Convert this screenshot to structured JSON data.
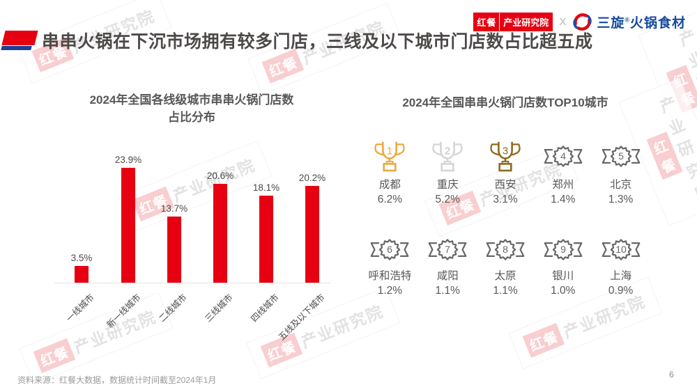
{
  "header": {
    "title": "串串火锅在下沉市场拥有较多门店，三线及以下城市门店数占比超五成",
    "logos": {
      "hongcan": "红餐",
      "institute": "产业研究院",
      "separator": "X",
      "partner_name": "三旋",
      "partner_reg": "®",
      "partner_suffix": "火锅食材"
    }
  },
  "watermark": {
    "brand": "红餐",
    "institute": "产业研究院"
  },
  "chart_data": {
    "type": "bar",
    "title": "2024年全国各线级城市串串火锅门店数占比分布",
    "title_line1": "2024年全国各线级城市串串火锅门店数",
    "title_line2": "占比分布",
    "categories": [
      "一线城市",
      "新一线城市",
      "二线城市",
      "三线城市",
      "四线城市",
      "五线及以下城市"
    ],
    "values": [
      3.5,
      23.9,
      13.7,
      20.6,
      18.1,
      20.2
    ],
    "labels": [
      "3.5%",
      "23.9%",
      "13.7%",
      "20.6%",
      "18.1%",
      "20.2%"
    ],
    "unit": "%",
    "bar_color": "#e60012",
    "ylim": [
      0,
      26
    ],
    "grid": false,
    "legend": "none"
  },
  "top10": {
    "title": "2024年全国串串火锅门店数TOP10城市",
    "items": [
      {
        "rank": "1",
        "city": "成都",
        "share": "6.2%",
        "icon": "trophy-gold"
      },
      {
        "rank": "2",
        "city": "重庆",
        "share": "5.2%",
        "icon": "trophy-silver"
      },
      {
        "rank": "3",
        "city": "西安",
        "share": "3.1%",
        "icon": "trophy-bronze"
      },
      {
        "rank": "4",
        "city": "郑州",
        "share": "1.4%",
        "icon": "badge"
      },
      {
        "rank": "5",
        "city": "北京",
        "share": "1.3%",
        "icon": "badge"
      },
      {
        "rank": "6",
        "city": "呼和浩特",
        "share": "1.2%",
        "icon": "badge"
      },
      {
        "rank": "7",
        "city": "咸阳",
        "share": "1.1%",
        "icon": "badge"
      },
      {
        "rank": "8",
        "city": "太原",
        "share": "1.1%",
        "icon": "badge"
      },
      {
        "rank": "9",
        "city": "银川",
        "share": "1.0%",
        "icon": "badge"
      },
      {
        "rank": "10",
        "city": "上海",
        "share": "0.9%",
        "icon": "badge"
      }
    ],
    "colors": {
      "gold": "#eba93e",
      "silver": "#d5d5d5",
      "bronze": "#8e6b1e",
      "badge": "#686868"
    }
  },
  "footer": {
    "source": "资料来源：红餐大数据，数据统计时间截至2024年1月",
    "page": "6"
  }
}
